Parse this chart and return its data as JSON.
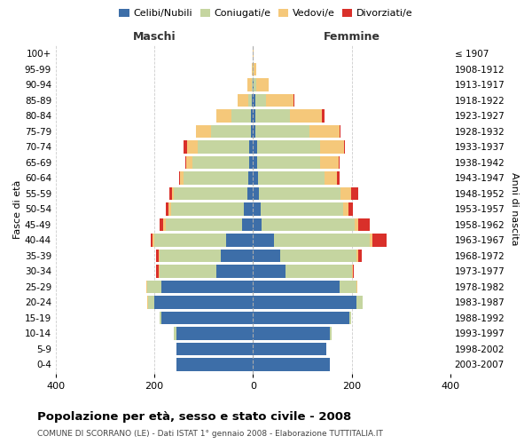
{
  "age_groups": [
    "0-4",
    "5-9",
    "10-14",
    "15-19",
    "20-24",
    "25-29",
    "30-34",
    "35-39",
    "40-44",
    "45-49",
    "50-54",
    "55-59",
    "60-64",
    "65-69",
    "70-74",
    "75-79",
    "80-84",
    "85-89",
    "90-94",
    "95-99",
    "100+"
  ],
  "birth_years": [
    "2003-2007",
    "1998-2002",
    "1993-1997",
    "1988-1992",
    "1983-1987",
    "1978-1982",
    "1973-1977",
    "1968-1972",
    "1963-1967",
    "1958-1962",
    "1953-1957",
    "1948-1952",
    "1943-1947",
    "1938-1942",
    "1933-1937",
    "1928-1932",
    "1923-1927",
    "1918-1922",
    "1913-1917",
    "1908-1912",
    "≤ 1907"
  ],
  "colors": {
    "celibi": "#3d6ea8",
    "coniugati": "#c5d5a0",
    "vedovi": "#f5c87a",
    "divorziati": "#d9302a"
  },
  "males": {
    "celibi": [
      155,
      155,
      155,
      185,
      200,
      185,
      75,
      65,
      55,
      22,
      18,
      12,
      10,
      8,
      8,
      5,
      4,
      2,
      0,
      0,
      0
    ],
    "coniugati": [
      0,
      0,
      5,
      4,
      12,
      30,
      115,
      125,
      145,
      155,
      148,
      148,
      130,
      115,
      105,
      80,
      40,
      8,
      3,
      1,
      0
    ],
    "vedovi": [
      0,
      0,
      0,
      0,
      2,
      2,
      2,
      2,
      3,
      5,
      5,
      5,
      8,
      12,
      20,
      30,
      30,
      22,
      8,
      2,
      0
    ],
    "divorziati": [
      0,
      0,
      0,
      0,
      0,
      0,
      5,
      5,
      5,
      8,
      5,
      5,
      2,
      2,
      8,
      0,
      0,
      0,
      0,
      0,
      0
    ]
  },
  "females": {
    "celibi": [
      155,
      148,
      155,
      195,
      210,
      175,
      65,
      55,
      42,
      18,
      15,
      12,
      10,
      8,
      8,
      5,
      5,
      5,
      2,
      0,
      0
    ],
    "coniugati": [
      0,
      0,
      5,
      4,
      12,
      35,
      135,
      155,
      195,
      188,
      168,
      165,
      135,
      128,
      128,
      110,
      70,
      22,
      5,
      2,
      0
    ],
    "vedovi": [
      0,
      0,
      0,
      0,
      0,
      2,
      2,
      3,
      5,
      8,
      10,
      22,
      25,
      38,
      48,
      60,
      65,
      55,
      25,
      5,
      1
    ],
    "divorziati": [
      0,
      0,
      0,
      0,
      0,
      0,
      2,
      8,
      28,
      22,
      10,
      15,
      5,
      2,
      2,
      2,
      5,
      2,
      0,
      0,
      0
    ]
  },
  "xlim": 400,
  "title": "Popolazione per età, sesso e stato civile - 2008",
  "subtitle": "COMUNE DI SCORRANO (LE) - Dati ISTAT 1° gennaio 2008 - Elaborazione TUTTITALIA.IT",
  "ylabel_left": "Fasce di età",
  "ylabel_right": "Anni di nascita",
  "xlabel_left": "Maschi",
  "xlabel_right": "Femmine",
  "background_color": "#ffffff",
  "grid_color": "#cccccc"
}
